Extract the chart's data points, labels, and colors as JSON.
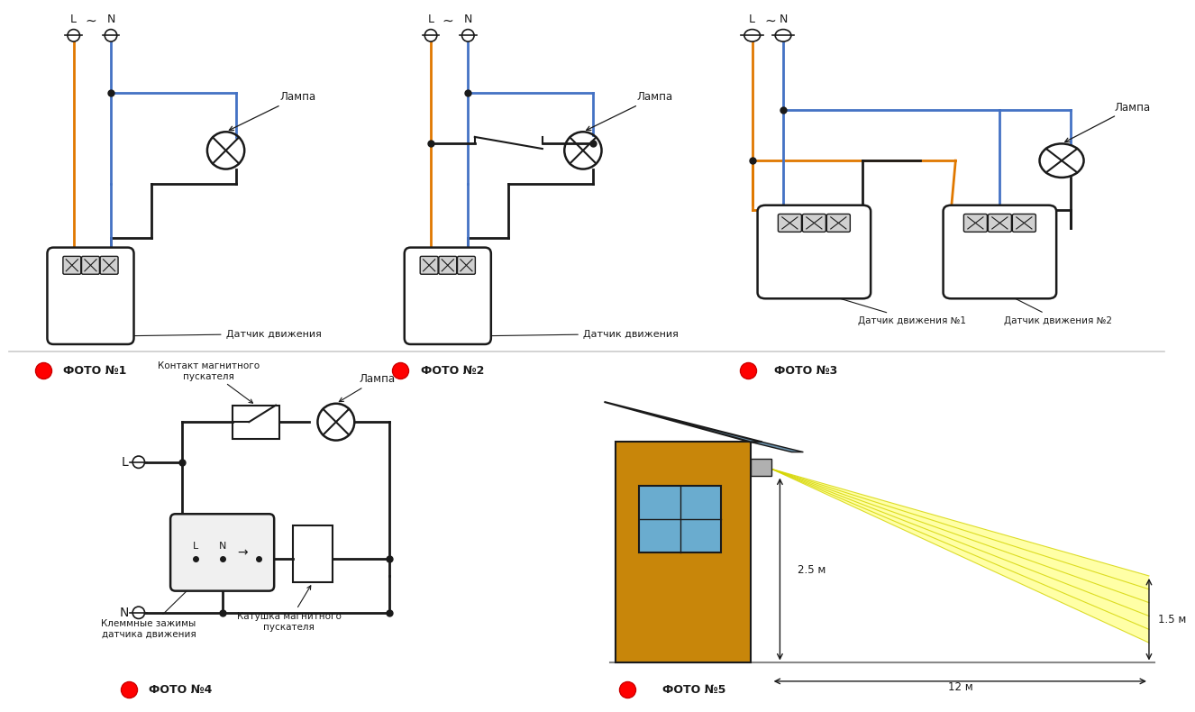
{
  "bg_color": "#ffffff",
  "wire_orange": "#e07800",
  "wire_blue": "#4472c4",
  "wire_black": "#1a1a1a",
  "house_wall_color": "#c8860a",
  "house_roof_color": "#6a8fa8",
  "house_ground_color": "#a0a0a0",
  "light_yellow": "#ffff88",
  "sensor_fill": "#f0f0f0",
  "sensor_terminal_fill": "#d0d0d0",
  "foto_labels": [
    "ФОТО №1",
    "ФОТО №2",
    "ФОТО №3",
    "ФОТО №4",
    "ФОТО №5"
  ],
  "lamp_labels": [
    "Лампа",
    "Лампа",
    "Лампа",
    "Лампа"
  ],
  "sensor_labels": [
    "Датчик движения",
    "Датчик движения",
    "Датчик движения №1",
    "Датчик движения №2"
  ],
  "panel4_labels": [
    "Контакт магнитного\nпускателя",
    "Лампа",
    "Клеммные зажимы\nдатчика движения",
    "Катушка магнитного\nпускателя"
  ],
  "dim_labels": [
    "2.5 м",
    "1.5 м",
    "12 м"
  ]
}
